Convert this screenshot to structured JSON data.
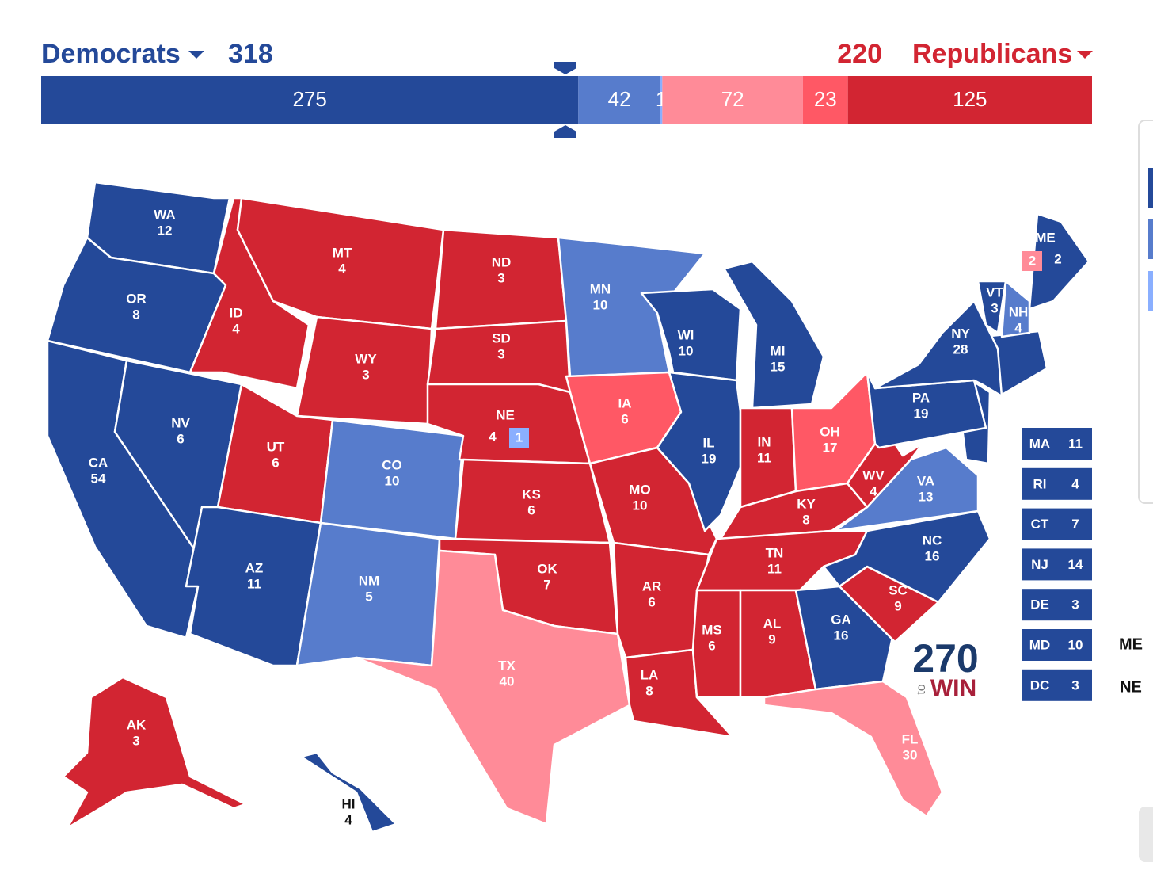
{
  "header": {
    "left": {
      "label": "Democrats",
      "total": 318,
      "color": "#244999"
    },
    "right": {
      "label": "Republicans",
      "total": 220,
      "color": "#d22532"
    }
  },
  "bar": [
    {
      "value": 275,
      "color": "#244999"
    },
    {
      "value": 42,
      "color": "#577ccc"
    },
    {
      "value": 1,
      "color": "#8aafff"
    },
    {
      "value": 72,
      "color": "#ff8b98"
    },
    {
      "value": 23,
      "color": "#ff5865"
    },
    {
      "value": 125,
      "color": "#d22532"
    }
  ],
  "states": [
    {
      "abbr": "WA",
      "votes": 12,
      "color": "#244999"
    },
    {
      "abbr": "OR",
      "votes": 8,
      "color": "#244999"
    },
    {
      "abbr": "CA",
      "votes": 54,
      "color": "#244999"
    },
    {
      "abbr": "NV",
      "votes": 6,
      "color": "#244999"
    },
    {
      "abbr": "ID",
      "votes": 4,
      "color": "#d22532"
    },
    {
      "abbr": "MT",
      "votes": 4,
      "color": "#d22532"
    },
    {
      "abbr": "WY",
      "votes": 3,
      "color": "#d22532"
    },
    {
      "abbr": "UT",
      "votes": 6,
      "color": "#d22532"
    },
    {
      "abbr": "AZ",
      "votes": 11,
      "color": "#244999"
    },
    {
      "abbr": "CO",
      "votes": 10,
      "color": "#577ccc"
    },
    {
      "abbr": "NM",
      "votes": 5,
      "color": "#577ccc"
    },
    {
      "abbr": "ND",
      "votes": 3,
      "color": "#d22532"
    },
    {
      "abbr": "SD",
      "votes": 3,
      "color": "#d22532"
    },
    {
      "abbr": "NE",
      "votes": 4,
      "color": "#d22532"
    },
    {
      "abbr": "KS",
      "votes": 6,
      "color": "#d22532"
    },
    {
      "abbr": "OK",
      "votes": 7,
      "color": "#d22532"
    },
    {
      "abbr": "TX",
      "votes": 40,
      "color": "#ff8b98"
    },
    {
      "abbr": "MN",
      "votes": 10,
      "color": "#577ccc"
    },
    {
      "abbr": "IA",
      "votes": 6,
      "color": "#ff5865"
    },
    {
      "abbr": "MO",
      "votes": 10,
      "color": "#d22532"
    },
    {
      "abbr": "AR",
      "votes": 6,
      "color": "#d22532"
    },
    {
      "abbr": "LA",
      "votes": 8,
      "color": "#d22532"
    },
    {
      "abbr": "WI",
      "votes": 10,
      "color": "#244999"
    },
    {
      "abbr": "IL",
      "votes": 19,
      "color": "#244999"
    },
    {
      "abbr": "MI",
      "votes": 15,
      "color": "#244999"
    },
    {
      "abbr": "IN",
      "votes": 11,
      "color": "#d22532"
    },
    {
      "abbr": "OH",
      "votes": 17,
      "color": "#ff5865"
    },
    {
      "abbr": "KY",
      "votes": 8,
      "color": "#d22532"
    },
    {
      "abbr": "TN",
      "votes": 11,
      "color": "#d22532"
    },
    {
      "abbr": "MS",
      "votes": 6,
      "color": "#d22532"
    },
    {
      "abbr": "AL",
      "votes": 9,
      "color": "#d22532"
    },
    {
      "abbr": "GA",
      "votes": 16,
      "color": "#244999"
    },
    {
      "abbr": "FL",
      "votes": 30,
      "color": "#ff8b98"
    },
    {
      "abbr": "SC",
      "votes": 9,
      "color": "#d22532"
    },
    {
      "abbr": "NC",
      "votes": 16,
      "color": "#244999"
    },
    {
      "abbr": "VA",
      "votes": 13,
      "color": "#577ccc"
    },
    {
      "abbr": "WV",
      "votes": 4,
      "color": "#d22532"
    },
    {
      "abbr": "PA",
      "votes": 19,
      "color": "#244999"
    },
    {
      "abbr": "NY",
      "votes": 28,
      "color": "#244999"
    },
    {
      "abbr": "VT",
      "votes": 3,
      "color": "#244999"
    },
    {
      "abbr": "NH",
      "votes": 4,
      "color": "#577ccc"
    },
    {
      "abbr": "ME",
      "votes": 2,
      "color": "#244999"
    },
    {
      "abbr": "AK",
      "votes": 3,
      "color": "#d22532"
    },
    {
      "abbr": "HI",
      "votes": 4,
      "color": "#244999"
    }
  ],
  "districts": [
    {
      "votes": 1,
      "color": "#8aafff"
    },
    {
      "votes": 2,
      "color": "#ff8b98"
    }
  ],
  "small_states": [
    {
      "abbr": "MA",
      "votes": 11,
      "color": "#244999"
    },
    {
      "abbr": "RI",
      "votes": 4,
      "color": "#244999"
    },
    {
      "abbr": "CT",
      "votes": 7,
      "color": "#244999"
    },
    {
      "abbr": "NJ",
      "votes": 14,
      "color": "#244999"
    },
    {
      "abbr": "DE",
      "votes": 3,
      "color": "#244999"
    },
    {
      "abbr": "MD",
      "votes": 10,
      "color": "#244999"
    },
    {
      "abbr": "DC",
      "votes": 3,
      "color": "#244999"
    }
  ],
  "split_labels": [
    "ME",
    "NE"
  ],
  "logo": {
    "number": "270",
    "small": "to",
    "word": "WIN"
  }
}
